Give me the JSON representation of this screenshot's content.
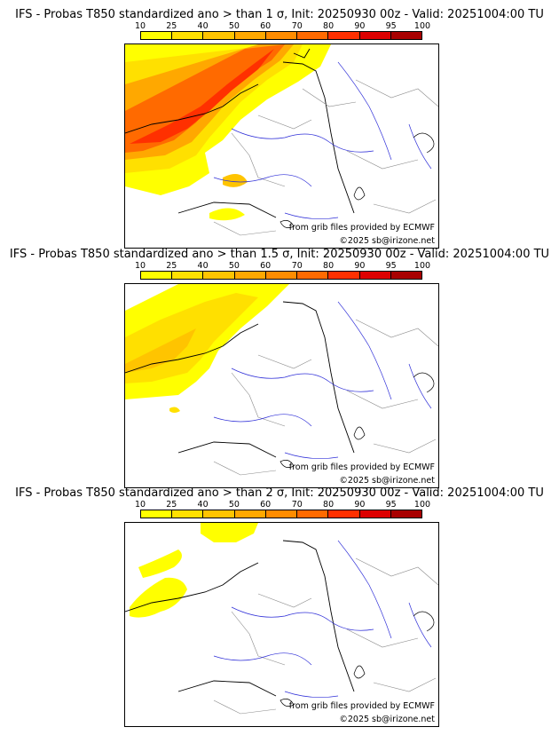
{
  "colorbar": {
    "ticks": [
      "10",
      "25",
      "40",
      "50",
      "60",
      "70",
      "80",
      "90",
      "95",
      "100"
    ],
    "colors": [
      "#ffff00",
      "#ffe000",
      "#ffc400",
      "#ffa800",
      "#ff8c00",
      "#ff6a00",
      "#ff3000",
      "#dd0000",
      "#a80000",
      "#5a0000"
    ]
  },
  "credits": {
    "source": "from grib files provided by ECMWF",
    "copyright": "©2025 sb@irizone.net"
  },
  "panels": [
    {
      "title": "IFS - Probas T850  standardized ano > than 1 σ, Init: 20250930 00z - Valid: 20251004:00 TU"
    },
    {
      "title": "IFS - Probas T850  standardized ano > than 1.5 σ, Init: 20250930 00z - Valid: 20251004:00 TU"
    },
    {
      "title": "IFS - Probas T850  standardized ano > than 2 σ, Init: 20250930 00z - Valid: 20251004:00 TU"
    }
  ]
}
